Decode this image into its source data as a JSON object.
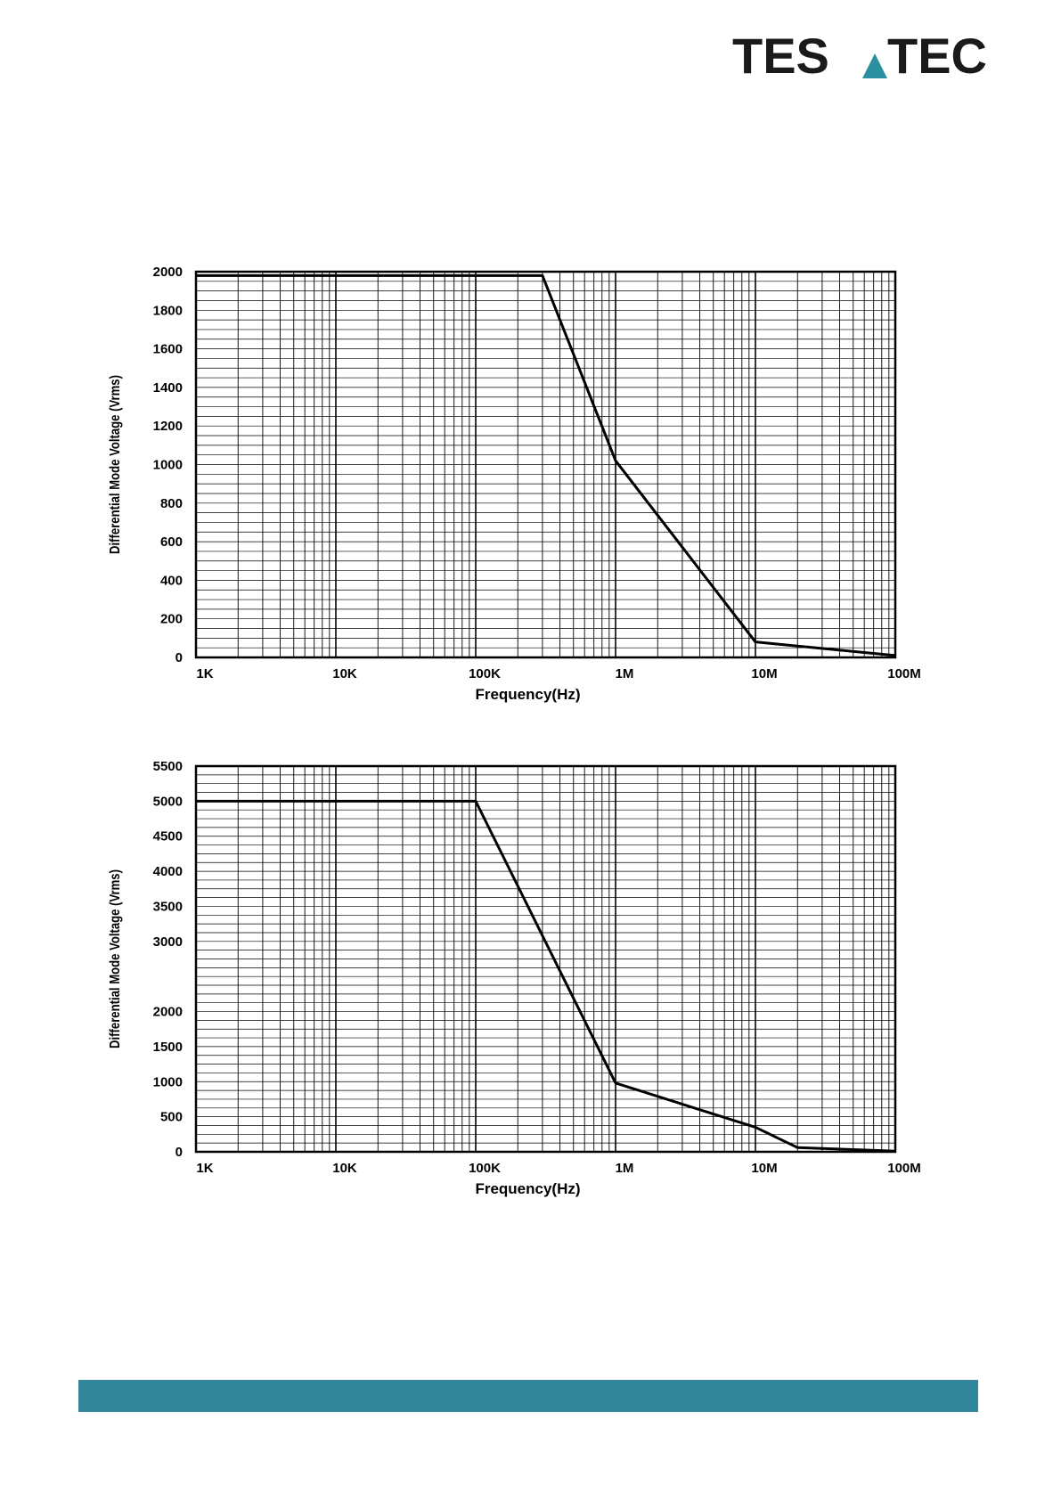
{
  "logo": {
    "text_left": "TES",
    "text_right": "TEC",
    "text": "TESTEC",
    "accent": "#2a8f9e",
    "color": "#1a1a1a"
  },
  "colors": {
    "footer_bar": "#33879b",
    "grid": "#000000",
    "line": "#000000"
  },
  "chart_data": [
    {
      "type": "line",
      "x_scale": "log",
      "xlabel": "Frequency(Hz)",
      "ylabel": "Differential Mode Voltage (Vrms)",
      "xlim": [
        1000,
        100000000
      ],
      "ylim": [
        0,
        2000
      ],
      "x_ticks": [
        1000,
        10000,
        100000,
        1000000,
        10000000,
        100000000
      ],
      "x_tick_labels": [
        "1K",
        "10K",
        "100K",
        "1M",
        "10M",
        "100M"
      ],
      "y_ticks": [
        0,
        200,
        400,
        600,
        800,
        1000,
        1200,
        1400,
        1600,
        1800,
        2000
      ],
      "y_tick_labels": [
        "0",
        "200",
        "400",
        "600",
        "800",
        "1000",
        "1200",
        "1400",
        "1600",
        "1800",
        "2000"
      ],
      "y_minor_step": 50,
      "grid": true,
      "x": [
        1000,
        300000,
        1000000,
        10000000,
        100000000
      ],
      "y": [
        1980,
        1980,
        1020,
        80,
        10
      ]
    },
    {
      "type": "line",
      "x_scale": "log",
      "xlabel": "Frequency(Hz)",
      "ylabel": "Differential Mode Voltage (Vrms)",
      "xlim": [
        1000,
        100000000
      ],
      "ylim": [
        0,
        5500
      ],
      "x_ticks": [
        1000,
        10000,
        100000,
        1000000,
        10000000,
        100000000
      ],
      "x_tick_labels": [
        "1K",
        "10K",
        "100K",
        "1M",
        "10M",
        "100M"
      ],
      "y_ticks": [
        0,
        500,
        1000,
        1500,
        2000,
        3000,
        3500,
        4000,
        4500,
        5000,
        5500
      ],
      "y_tick_labels": [
        "0",
        "500",
        "1000",
        "1500",
        "2000",
        "3000",
        "3500",
        "4000",
        "4500",
        "5000",
        "5500"
      ],
      "y_minor_step": 125,
      "grid": true,
      "x": [
        1000,
        100000,
        1000000,
        10000000,
        20000000,
        100000000
      ],
      "y": [
        5000,
        5000,
        980,
        350,
        60,
        10
      ]
    }
  ]
}
